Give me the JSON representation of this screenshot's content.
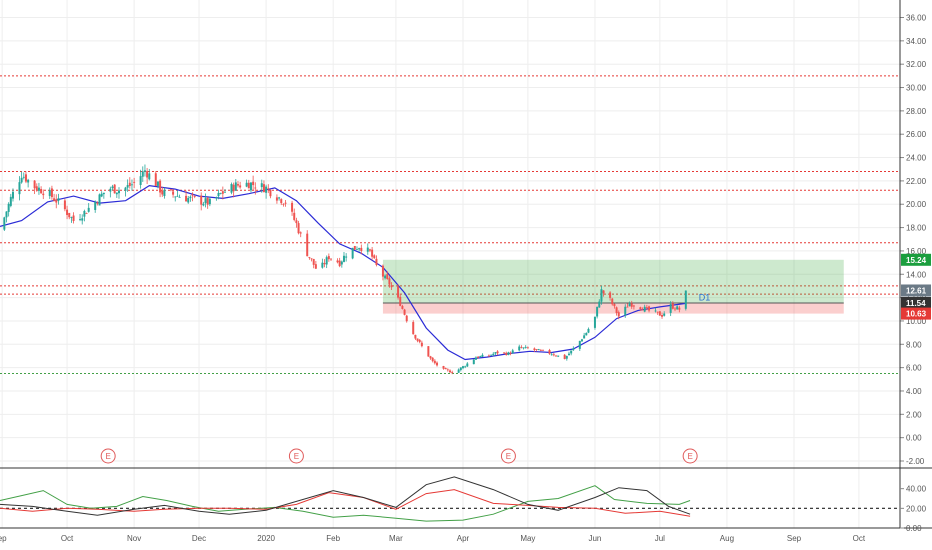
{
  "chart_data": [
    {
      "type": "candlestick",
      "y_scale": "log",
      "ylim": [
        -2.6,
        37.5
      ],
      "y_ticks": [
        "36.00",
        "34.00",
        "32.00",
        "30.00",
        "28.00",
        "26.00",
        "24.00",
        "22.00",
        "20.00",
        "18.00",
        "16.00",
        "14.00",
        "12.00",
        "10.00",
        "8.00",
        "6.00",
        "4.00",
        "2.00",
        "0.00",
        "-2.00"
      ],
      "y_tick_values": [
        36,
        34,
        32,
        30,
        28,
        26,
        24,
        22,
        20,
        18,
        16,
        14,
        12,
        10,
        8,
        6,
        4,
        2,
        0,
        -2
      ],
      "x_ticks": [
        "ep",
        "Oct",
        "Nov",
        "Dec",
        "2020",
        "Feb",
        "Mar",
        "Apr",
        "May",
        "Jun",
        "Jul",
        "Aug",
        "Sep",
        "Oct"
      ],
      "x_tick_dates": [
        "2019-09-01",
        "2019-10-01",
        "2019-11-01",
        "2019-12-01",
        "2020-01-01",
        "2020-02-01",
        "2020-03-01",
        "2020-04-01",
        "2020-05-01",
        "2020-06-01",
        "2020-07-01",
        "2020-08-01",
        "2020-09-01",
        "2020-10-01"
      ],
      "x_range": [
        "2019-08-31",
        "2020-10-20"
      ],
      "close_series": [
        [
          "2019-08-31",
          17.8
        ],
        [
          "2019-09-05",
          20.5
        ],
        [
          "2019-09-10",
          22.6
        ],
        [
          "2019-09-16",
          21.5
        ],
        [
          "2019-09-22",
          21.0
        ],
        [
          "2019-09-28",
          20.0
        ],
        [
          "2019-10-04",
          18.6
        ],
        [
          "2019-10-09",
          19.3
        ],
        [
          "2019-10-14",
          20.2
        ],
        [
          "2019-10-20",
          21.4
        ],
        [
          "2019-10-26",
          21.2
        ],
        [
          "2019-11-01",
          21.8
        ],
        [
          "2019-11-06",
          22.9
        ],
        [
          "2019-11-10",
          22.1
        ],
        [
          "2019-11-14",
          21.0
        ],
        [
          "2019-11-20",
          20.8
        ],
        [
          "2019-11-26",
          20.5
        ],
        [
          "2019-12-01",
          20.3
        ],
        [
          "2019-12-06",
          20.1
        ],
        [
          "2019-12-12",
          21.0
        ],
        [
          "2019-12-18",
          21.6
        ],
        [
          "2019-12-24",
          21.8
        ],
        [
          "2020-01-01",
          21.4
        ],
        [
          "2020-01-05",
          20.8
        ],
        [
          "2020-01-10",
          20.2
        ],
        [
          "2020-01-15",
          18.3
        ],
        [
          "2020-01-20",
          15.8
        ],
        [
          "2020-01-25",
          14.2
        ],
        [
          "2020-01-30",
          15.5
        ],
        [
          "2020-02-04",
          15.0
        ],
        [
          "2020-02-08",
          16.0
        ],
        [
          "2020-02-13",
          16.4
        ],
        [
          "2020-02-18",
          15.9
        ],
        [
          "2020-02-22",
          14.3
        ],
        [
          "2020-02-27",
          13.2
        ],
        [
          "2020-03-03",
          11.5
        ],
        [
          "2020-03-08",
          9.2
        ],
        [
          "2020-03-13",
          7.8
        ],
        [
          "2020-03-18",
          6.5
        ],
        [
          "2020-03-23",
          5.8
        ],
        [
          "2020-03-28",
          5.6
        ],
        [
          "2020-04-02",
          6.2
        ],
        [
          "2020-04-07",
          6.9
        ],
        [
          "2020-04-12",
          7.0
        ],
        [
          "2020-04-17",
          7.3
        ],
        [
          "2020-04-22",
          7.2
        ],
        [
          "2020-04-27",
          7.7
        ],
        [
          "2020-05-02",
          7.6
        ],
        [
          "2020-05-07",
          7.4
        ],
        [
          "2020-05-12",
          7.2
        ],
        [
          "2020-05-18",
          6.8
        ],
        [
          "2020-05-23",
          7.8
        ],
        [
          "2020-05-28",
          9.0
        ],
        [
          "2020-06-01",
          10.3
        ],
        [
          "2020-06-04",
          12.6
        ],
        [
          "2020-06-08",
          11.8
        ],
        [
          "2020-06-12",
          10.4
        ],
        [
          "2020-06-17",
          11.5
        ],
        [
          "2020-06-22",
          11.2
        ],
        [
          "2020-06-27",
          10.8
        ],
        [
          "2020-07-02",
          10.5
        ],
        [
          "2020-07-06",
          11.3
        ],
        [
          "2020-07-10",
          11.0
        ],
        [
          "2020-07-13",
          12.4
        ]
      ],
      "moving_average": [
        [
          "2019-08-31",
          18.1
        ],
        [
          "2019-09-10",
          18.6
        ],
        [
          "2019-09-22",
          20.2
        ],
        [
          "2019-10-04",
          20.7
        ],
        [
          "2019-10-16",
          20.1
        ],
        [
          "2019-10-28",
          20.3
        ],
        [
          "2019-11-08",
          21.6
        ],
        [
          "2019-11-20",
          21.3
        ],
        [
          "2019-12-01",
          20.7
        ],
        [
          "2019-12-12",
          20.5
        ],
        [
          "2019-12-24",
          20.9
        ],
        [
          "2020-01-05",
          21.4
        ],
        [
          "2020-01-15",
          20.3
        ],
        [
          "2020-01-25",
          18.4
        ],
        [
          "2020-02-04",
          16.6
        ],
        [
          "2020-02-14",
          15.8
        ],
        [
          "2020-02-24",
          14.6
        ],
        [
          "2020-03-05",
          12.4
        ],
        [
          "2020-03-15",
          9.4
        ],
        [
          "2020-03-25",
          7.5
        ],
        [
          "2020-04-02",
          6.7
        ],
        [
          "2020-04-12",
          6.9
        ],
        [
          "2020-04-22",
          7.2
        ],
        [
          "2020-05-02",
          7.4
        ],
        [
          "2020-05-12",
          7.3
        ],
        [
          "2020-05-22",
          7.6
        ],
        [
          "2020-06-01",
          8.6
        ],
        [
          "2020-06-11",
          10.2
        ],
        [
          "2020-06-21",
          10.9
        ],
        [
          "2020-07-01",
          11.2
        ],
        [
          "2020-07-13",
          11.5
        ]
      ],
      "horizontal_levels": [
        {
          "value": 31.0,
          "color": "#e53935",
          "style": "dotted"
        },
        {
          "value": 22.8,
          "color": "#e53935",
          "style": "dotted"
        },
        {
          "value": 21.2,
          "color": "#e53935",
          "style": "dotted"
        },
        {
          "value": 16.7,
          "color": "#e53935",
          "style": "dotted"
        },
        {
          "value": 13.0,
          "color": "#e53935",
          "style": "dotted"
        },
        {
          "value": 12.3,
          "color": "#e53935",
          "style": "dotted"
        },
        {
          "value": 5.5,
          "color": "#43a047",
          "style": "dotted"
        }
      ],
      "position_tool": {
        "start_date": "2020-02-24",
        "end_date": "2020-09-24",
        "entry": 11.54,
        "target": 15.24,
        "stop": 10.63,
        "label": "D1"
      },
      "price_badges": [
        {
          "text": "15.24",
          "value": 15.24,
          "color": "#1b9e3e"
        },
        {
          "text": "12.61",
          "value": 12.61,
          "color": "#6b7a86"
        },
        {
          "text": "11.54",
          "value": 11.54,
          "color": "#333333"
        },
        {
          "text": "10.63",
          "value": 10.63,
          "color": "#e53935"
        }
      ],
      "earnings_markers": [
        {
          "label": "E",
          "date": "2019-10-20"
        },
        {
          "label": "E",
          "date": "2020-01-15"
        },
        {
          "label": "E",
          "date": "2020-04-22"
        },
        {
          "label": "E",
          "date": "2020-07-15"
        }
      ],
      "colors": {
        "up": "#26a69a",
        "down": "#ef5350",
        "ma": "#2b2bd6",
        "grid": "#eeeeee"
      }
    },
    {
      "type": "line",
      "panel": "indicator",
      "ylim": [
        0,
        60
      ],
      "y_ticks": [
        "40.00",
        "20.00",
        "0.00"
      ],
      "y_tick_values": [
        40,
        20,
        0
      ],
      "reference_level": 20,
      "series": [
        {
          "color": "#43a047",
          "values": [
            [
              "2019-08-31",
              28
            ],
            [
              "2019-09-10",
              33
            ],
            [
              "2019-09-20",
              38
            ],
            [
              "2019-10-01",
              24
            ],
            [
              "2019-10-12",
              20
            ],
            [
              "2019-10-24",
              22
            ],
            [
              "2019-11-05",
              32
            ],
            [
              "2019-11-16",
              28
            ],
            [
              "2019-11-28",
              22
            ],
            [
              "2019-12-10",
              17
            ],
            [
              "2019-12-22",
              19
            ],
            [
              "2020-01-05",
              21
            ],
            [
              "2020-01-18",
              17
            ],
            [
              "2020-02-01",
              11
            ],
            [
              "2020-02-15",
              13
            ],
            [
              "2020-03-01",
              10
            ],
            [
              "2020-03-15",
              7
            ],
            [
              "2020-04-01",
              8
            ],
            [
              "2020-04-15",
              14
            ],
            [
              "2020-05-01",
              27
            ],
            [
              "2020-05-15",
              30
            ],
            [
              "2020-06-01",
              43
            ],
            [
              "2020-06-10",
              29
            ],
            [
              "2020-06-25",
              25
            ],
            [
              "2020-07-10",
              24
            ],
            [
              "2020-07-15",
              28
            ]
          ]
        },
        {
          "color": "#e53935",
          "values": [
            [
              "2019-08-31",
              20
            ],
            [
              "2019-09-15",
              17
            ],
            [
              "2019-10-01",
              20
            ],
            [
              "2019-10-15",
              19
            ],
            [
              "2019-11-01",
              17
            ],
            [
              "2019-11-15",
              19
            ],
            [
              "2019-12-01",
              20
            ],
            [
              "2019-12-15",
              20
            ],
            [
              "2020-01-01",
              19
            ],
            [
              "2020-01-15",
              24
            ],
            [
              "2020-01-30",
              36
            ],
            [
              "2020-02-15",
              31
            ],
            [
              "2020-03-01",
              19
            ],
            [
              "2020-03-15",
              35
            ],
            [
              "2020-03-28",
              39
            ],
            [
              "2020-04-15",
              25
            ],
            [
              "2020-05-01",
              23
            ],
            [
              "2020-05-15",
              21
            ],
            [
              "2020-06-01",
              20
            ],
            [
              "2020-06-15",
              15
            ],
            [
              "2020-07-01",
              17
            ],
            [
              "2020-07-15",
              12
            ]
          ]
        },
        {
          "color": "#333333",
          "values": [
            [
              "2019-08-31",
              24
            ],
            [
              "2019-09-15",
              22
            ],
            [
              "2019-10-01",
              17
            ],
            [
              "2019-10-15",
              13
            ],
            [
              "2019-11-01",
              19
            ],
            [
              "2019-11-15",
              23
            ],
            [
              "2019-12-01",
              17
            ],
            [
              "2019-12-15",
              14
            ],
            [
              "2020-01-01",
              18
            ],
            [
              "2020-01-15",
              27
            ],
            [
              "2020-02-01",
              38
            ],
            [
              "2020-02-15",
              31
            ],
            [
              "2020-03-01",
              21
            ],
            [
              "2020-03-15",
              44
            ],
            [
              "2020-03-28",
              52
            ],
            [
              "2020-04-15",
              39
            ],
            [
              "2020-05-01",
              24
            ],
            [
              "2020-05-15",
              18
            ],
            [
              "2020-06-01",
              31
            ],
            [
              "2020-06-12",
              41
            ],
            [
              "2020-06-25",
              38
            ],
            [
              "2020-07-05",
              22
            ],
            [
              "2020-07-15",
              14
            ]
          ]
        }
      ]
    }
  ]
}
